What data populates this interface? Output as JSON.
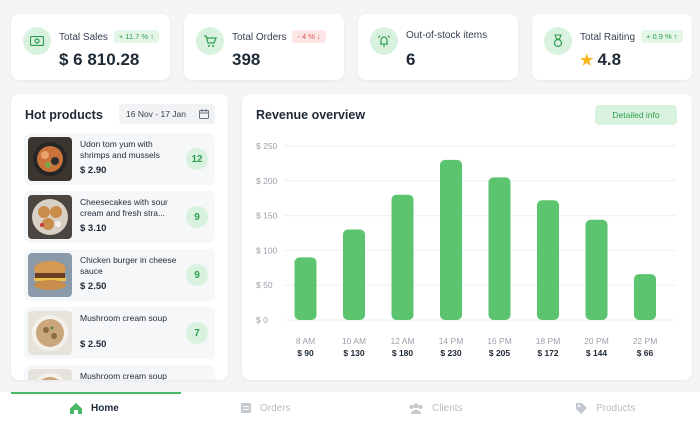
{
  "stats": [
    {
      "label": "Total Sales",
      "value": "$ 6 810.28",
      "badge": "+ 11.7 % ↑",
      "badge_type": "up",
      "icon": "cash-icon"
    },
    {
      "label": "Total Orders",
      "value": "398",
      "badge": "- 4 % ↓",
      "badge_type": "down",
      "icon": "cart-icon"
    },
    {
      "label": "Out-of-stock items",
      "value": "6",
      "badge": "",
      "icon": "alert-bell-icon"
    },
    {
      "label": "Total Raiting",
      "value": "4.8",
      "badge": "+ 0.9 % ↑",
      "badge_type": "up",
      "icon": "medal-icon"
    }
  ],
  "hot": {
    "title": "Hot products",
    "date_range": "16 Nov - 17 Jan",
    "items": [
      {
        "name": "Udon tom yum with shrimps and mussels",
        "price": "$ 2.90",
        "count": "12"
      },
      {
        "name": "Cheesecakes with sour cream and fresh stra...",
        "price": "$ 3.10",
        "count": "9"
      },
      {
        "name": "Chicken burger in cheese sauce",
        "price": "$ 2.50",
        "count": "9"
      },
      {
        "name": "Mushroom cream soup",
        "price": "$ 2.50",
        "count": "7"
      },
      {
        "name": "Mushroom cream soup",
        "price": "",
        "count": ""
      }
    ]
  },
  "revenue": {
    "title": "Revenue overview",
    "detail_label": "Detailed info"
  },
  "chart_data": {
    "type": "bar",
    "categories": [
      "8 AM",
      "10 AM",
      "12 AM",
      "14 PM",
      "16 PM",
      "18 PM",
      "20 PM",
      "22 PM"
    ],
    "values": [
      90,
      130,
      180,
      230,
      205,
      172,
      144,
      66
    ],
    "value_labels": [
      "$ 90",
      "$ 130",
      "$ 180",
      "$ 230",
      "$ 205",
      "$ 172",
      "$ 144",
      "$ 66"
    ],
    "y_ticks": [
      "$ 0",
      "$ 50",
      "$ 100",
      "$ 150",
      "$ 200",
      "$ 250"
    ],
    "ylim": [
      0,
      250
    ],
    "grid": true,
    "bar_color": "#5cc46e"
  },
  "nav": [
    {
      "label": "Home",
      "icon": "home-icon",
      "active": true
    },
    {
      "label": "Orders",
      "icon": "orders-icon",
      "active": false
    },
    {
      "label": "Clients",
      "icon": "clients-icon",
      "active": false
    },
    {
      "label": "Products",
      "icon": "tag-icon",
      "active": false
    }
  ]
}
